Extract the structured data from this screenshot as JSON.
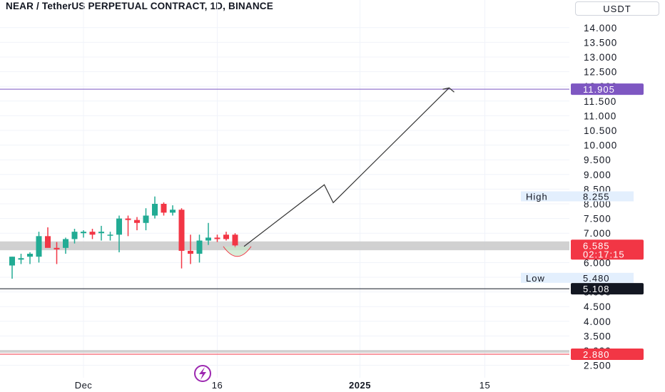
{
  "header": {
    "title": "NEAR / TetherUS PERPETUAL CONTRACT, 1D, BINANCE",
    "unit": "USDT"
  },
  "colors": {
    "up": "#22ab94",
    "down": "#f23645",
    "target_line": "#7e57c2",
    "target_tag": "#7e57c2",
    "last_price_tag": "#f23645",
    "support_line": "#131722",
    "low_zone_line": "#f23645",
    "zone_fill": "#c9c9c9",
    "grid": "#f0f3fa",
    "path": "#333333"
  },
  "chart_data": {
    "type": "candlestick",
    "y_ticks": [
      2.5,
      3.0,
      3.5,
      4.0,
      4.5,
      5.0,
      5.5,
      6.0,
      6.5,
      7.0,
      7.5,
      8.0,
      8.5,
      9.0,
      9.5,
      10.0,
      10.5,
      11.0,
      11.5,
      12.0,
      12.5,
      13.0,
      13.5,
      14.0
    ],
    "y_tick_labels": [
      "2.500",
      "3.000",
      "3.500",
      "4.000",
      "4.500",
      "5.000",
      "5.500",
      "6.000",
      "6.500",
      "7.000",
      "7.500",
      "8.000",
      "8.500",
      "9.000",
      "9.500",
      "10.000",
      "10.500",
      "11.000",
      "11.500",
      "12.000",
      "12.500",
      "13.000",
      "13.500",
      "14.000"
    ],
    "ylim": [
      2.3,
      14.55
    ],
    "x_labels": [
      {
        "label": "Dec",
        "date": "2024-12-01"
      },
      {
        "label": "16",
        "date": "2024-12-16"
      },
      {
        "label": "2025",
        "date": "2025-01-01"
      },
      {
        "label": "15",
        "date": "2025-01-15"
      }
    ],
    "candles": [
      {
        "date": "2024-11-23",
        "open": 5.9,
        "high": 6.2,
        "low": 5.45,
        "close": 6.2
      },
      {
        "date": "2024-11-24",
        "open": 6.1,
        "high": 6.3,
        "low": 5.95,
        "close": 6.15
      },
      {
        "date": "2024-11-25",
        "open": 6.2,
        "high": 6.35,
        "low": 5.95,
        "close": 6.3
      },
      {
        "date": "2024-11-26",
        "open": 6.2,
        "high": 7.05,
        "low": 6.0,
        "close": 6.9
      },
      {
        "date": "2024-11-27",
        "open": 6.9,
        "high": 7.2,
        "low": 6.6,
        "close": 6.5
      },
      {
        "date": "2024-11-28",
        "open": 6.5,
        "high": 6.7,
        "low": 5.95,
        "close": 6.45
      },
      {
        "date": "2024-11-29",
        "open": 6.5,
        "high": 6.85,
        "low": 6.3,
        "close": 6.8
      },
      {
        "date": "2024-11-30",
        "open": 6.8,
        "high": 7.15,
        "low": 6.65,
        "close": 7.05
      },
      {
        "date": "2024-12-01",
        "open": 7.0,
        "high": 7.1,
        "low": 6.85,
        "close": 7.05
      },
      {
        "date": "2024-12-02",
        "open": 7.05,
        "high": 7.15,
        "low": 6.8,
        "close": 6.95
      },
      {
        "date": "2024-12-03",
        "open": 7.0,
        "high": 7.25,
        "low": 6.75,
        "close": 7.05
      },
      {
        "date": "2024-12-04",
        "open": 6.95,
        "high": 7.05,
        "low": 6.75,
        "close": 6.95
      },
      {
        "date": "2024-12-05",
        "open": 6.95,
        "high": 7.6,
        "low": 6.35,
        "close": 7.5
      },
      {
        "date": "2024-12-06",
        "open": 7.5,
        "high": 7.6,
        "low": 6.9,
        "close": 7.45
      },
      {
        "date": "2024-12-07",
        "open": 7.45,
        "high": 7.55,
        "low": 7.1,
        "close": 7.35
      },
      {
        "date": "2024-12-08",
        "open": 7.35,
        "high": 7.85,
        "low": 7.1,
        "close": 7.6
      },
      {
        "date": "2024-12-09",
        "open": 7.6,
        "high": 8.25,
        "low": 7.5,
        "close": 8.0
      },
      {
        "date": "2024-12-10",
        "open": 8.0,
        "high": 8.05,
        "low": 7.6,
        "close": 7.7
      },
      {
        "date": "2024-12-11",
        "open": 7.7,
        "high": 7.95,
        "low": 7.6,
        "close": 7.8
      },
      {
        "date": "2024-12-12",
        "open": 7.8,
        "high": 7.85,
        "low": 5.8,
        "close": 6.4
      },
      {
        "date": "2024-12-13",
        "open": 6.4,
        "high": 6.95,
        "low": 5.95,
        "close": 6.3
      },
      {
        "date": "2024-12-14",
        "open": 6.3,
        "high": 6.95,
        "low": 6.0,
        "close": 6.75
      },
      {
        "date": "2024-12-15",
        "open": 6.75,
        "high": 7.35,
        "low": 6.6,
        "close": 6.85
      },
      {
        "date": "2024-12-16",
        "open": 6.85,
        "high": 6.95,
        "low": 6.7,
        "close": 6.8
      },
      {
        "date": "2024-12-17",
        "open": 6.95,
        "high": 7.05,
        "low": 6.75,
        "close": 6.8
      },
      {
        "date": "2024-12-18",
        "open": 6.95,
        "high": 7.0,
        "low": 6.5,
        "close": 6.585
      }
    ],
    "zones": [
      {
        "from": 6.42,
        "to": 6.72
      },
      {
        "from": 2.93,
        "to": 3.02
      }
    ],
    "h_lines": [
      {
        "value": 11.905,
        "kind": "target"
      },
      {
        "value": 5.108,
        "kind": "support"
      },
      {
        "value": 2.88,
        "kind": "low_zone"
      }
    ],
    "projection_path": [
      {
        "date": "2024-12-19",
        "price": 6.55
      },
      {
        "date": "2024-12-28",
        "price": 8.65
      },
      {
        "date": "2024-12-29",
        "price": 8.04
      },
      {
        "date": "2025-01-11",
        "price": 11.95
      }
    ],
    "markers": {
      "bottom_arc": {
        "date_from": "2024-12-17",
        "date_to": "2024-12-19",
        "price": 6.55
      }
    },
    "price_tags": {
      "target": "11.905",
      "last": "6.585",
      "countdown": "02:17:15",
      "support": "5.108",
      "low_zone": "2.880",
      "high_label": "High",
      "high_value": "8.255",
      "low_label": "Low",
      "low_value": "5.480"
    }
  }
}
